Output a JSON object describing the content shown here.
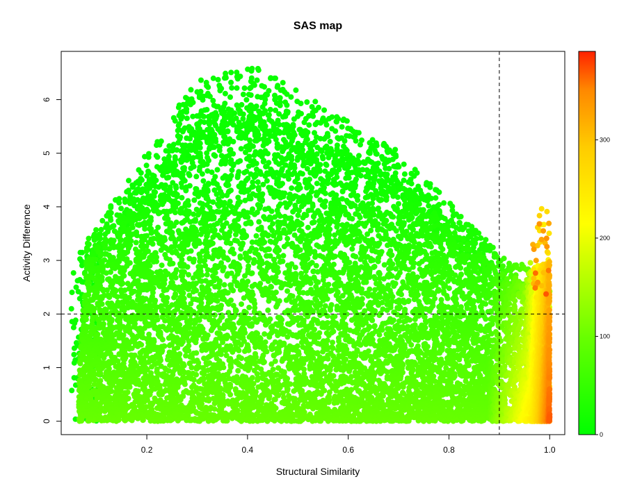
{
  "chart_data": {
    "type": "scatter",
    "title": "SAS map",
    "xlabel": "Structural Similarity",
    "ylabel": "Activity Difference",
    "xlim": [
      0.03,
      1.03
    ],
    "ylim": [
      -0.25,
      6.9
    ],
    "x_ticks": [
      0.2,
      0.4,
      0.6,
      0.8,
      1.0
    ],
    "x_tick_labels": [
      "0.2",
      "0.4",
      "0.6",
      "0.8",
      "1.0"
    ],
    "y_ticks": [
      0,
      1,
      2,
      3,
      4,
      5,
      6
    ],
    "y_tick_labels": [
      "0",
      "1",
      "2",
      "3",
      "4",
      "5",
      "6"
    ],
    "grid": false,
    "threshold_lines": {
      "x": 0.9,
      "y": 2.0,
      "style": "dashed"
    },
    "colorbar": {
      "range": [
        0,
        390
      ],
      "ticks": [
        0,
        100,
        200,
        300
      ],
      "tick_labels": [
        "0",
        "100",
        "200",
        "300"
      ],
      "colors": {
        "low": "#00ff00",
        "mid_low": "#66ff00",
        "mid": "#ffff00",
        "mid_high": "#ffaa00",
        "high": "#ff2200"
      }
    },
    "point_color_encodes": "local point density (colorbar scale)"
  }
}
